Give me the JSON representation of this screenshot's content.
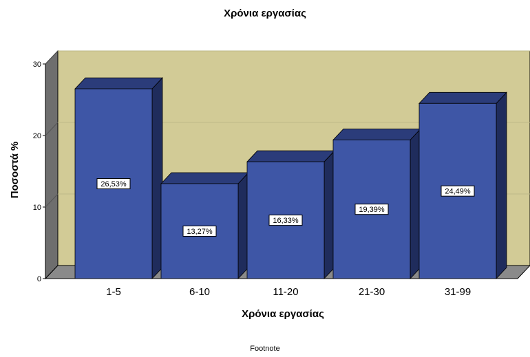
{
  "chart_data": {
    "type": "bar",
    "title": "Χρόνια εργασίας",
    "xlabel": "Χρόνια εργασίας",
    "ylabel": "Ποσοστά %",
    "categories": [
      "1-5",
      "6-10",
      "11-20",
      "21-30",
      "31-99"
    ],
    "values": [
      26.53,
      13.27,
      16.33,
      19.39,
      24.49
    ],
    "data_labels": [
      "26,53%",
      "13,27%",
      "16,33%",
      "19,39%",
      "24,49%"
    ],
    "ylim": [
      0,
      30
    ],
    "yticks": [
      0,
      10,
      20,
      30
    ],
    "grid": true,
    "style": "3d",
    "footnote": "Footnote"
  },
  "colors": {
    "bar_front": "#3E56A6",
    "bar_top": "#2B3C7A",
    "bar_side": "#1F2C5C",
    "back_wall": "#D2CB96",
    "side_wall": "#6E6E6E",
    "floor": "#8A8A8A",
    "gridline": "#BDB888",
    "data_label_bg": "#FFFFFF"
  }
}
